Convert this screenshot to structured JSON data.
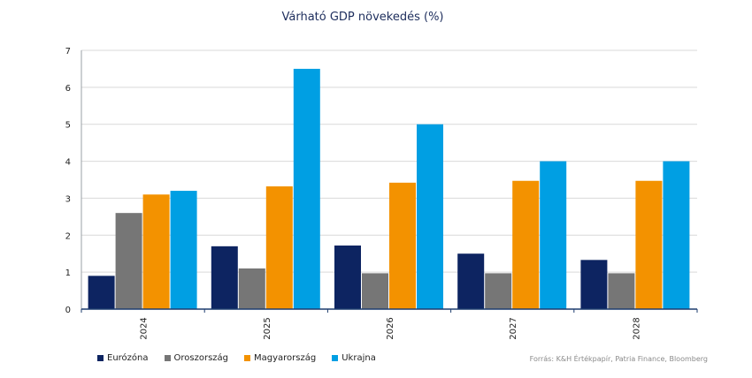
{
  "chart_data": {
    "type": "bar",
    "title": "Várható GDP növekedés (%)",
    "categories": [
      "2024",
      "2025",
      "2026",
      "2027",
      "2028"
    ],
    "series": [
      {
        "name": "Eurózóna",
        "color": "#0d2461",
        "values": [
          0.9,
          1.7,
          1.72,
          1.5,
          1.33
        ]
      },
      {
        "name": "Oroszország",
        "color": "#767676",
        "values": [
          2.6,
          1.1,
          0.97,
          0.97,
          0.97
        ]
      },
      {
        "name": "Magyarország",
        "color": "#f39200",
        "values": [
          3.1,
          3.32,
          3.42,
          3.47,
          3.47
        ]
      },
      {
        "name": "Ukrajna",
        "color": "#009fe3",
        "values": [
          3.2,
          6.5,
          5.0,
          4.0,
          4.0
        ]
      }
    ],
    "ylim": [
      0,
      7
    ],
    "yticks": [
      0,
      1,
      2,
      3,
      4,
      5,
      6,
      7
    ],
    "grid": true,
    "legend_position": "bottom-left"
  },
  "source": "Forrás: K&H Értékpapír, Patria Finance, Bloomberg"
}
